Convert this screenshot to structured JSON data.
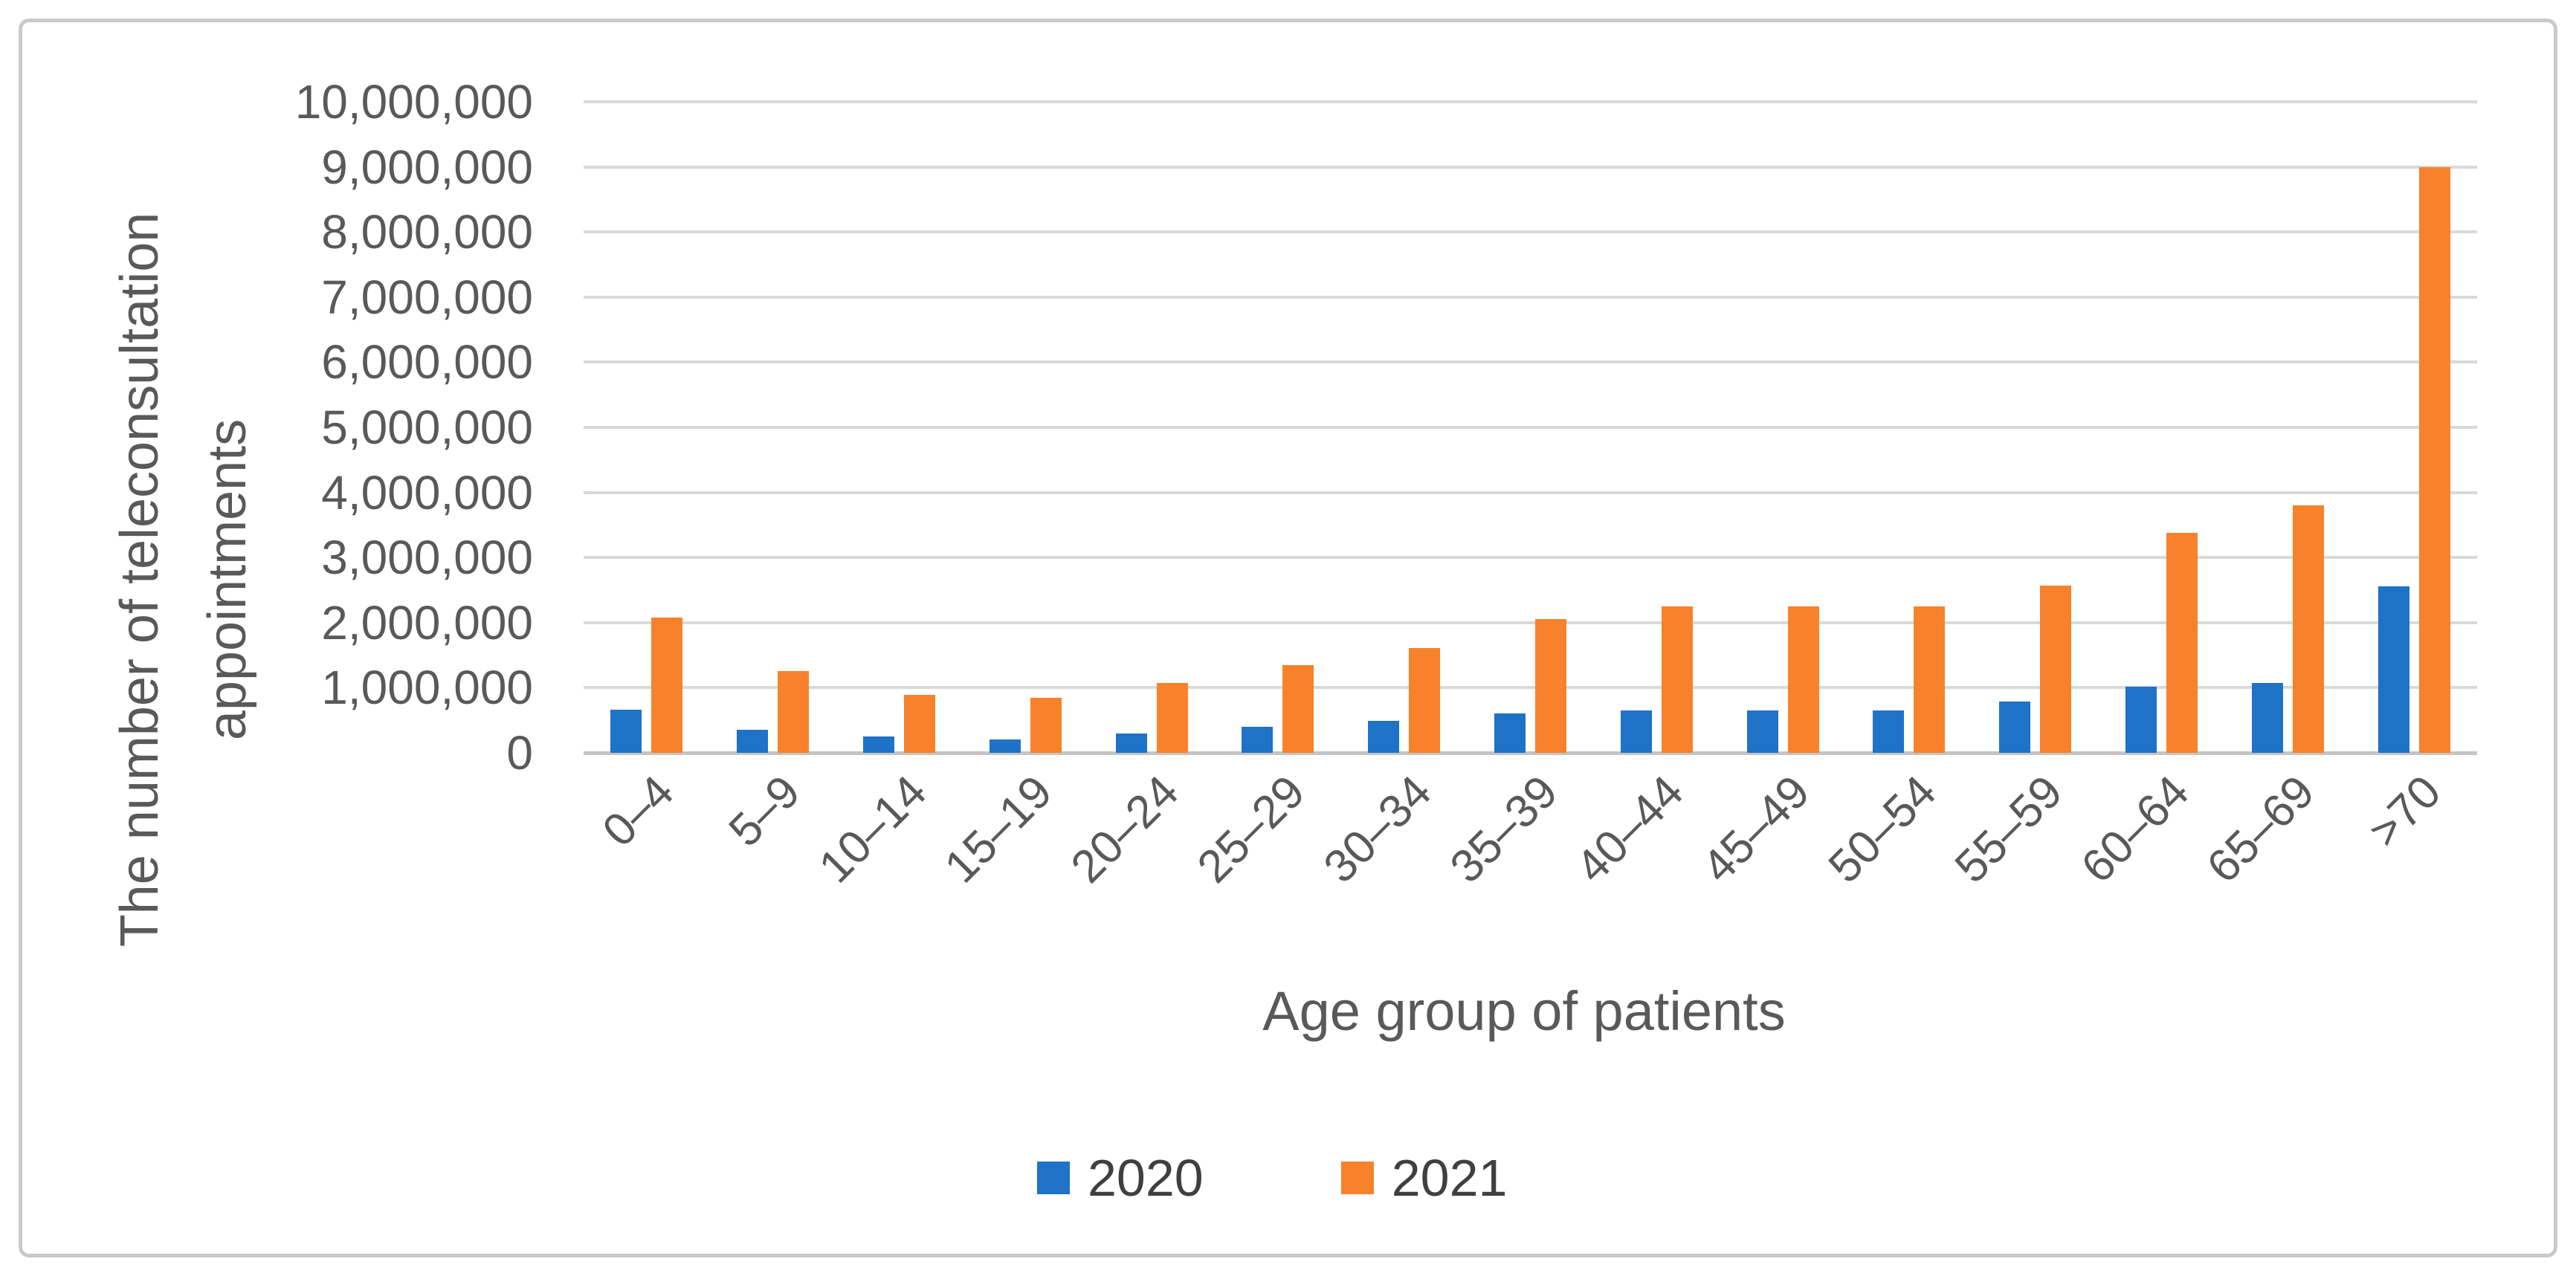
{
  "figure": {
    "background": "#ffffff",
    "border_color": "#c9c9c9",
    "gridline_color": "#d9d9d9",
    "axis_line_color": "#c4c4c4",
    "text_color": "#595959"
  },
  "chart_data": {
    "type": "bar",
    "title": "",
    "xlabel": "Age group of patients",
    "ylabel": "The number of teleconsultation appointments",
    "ylabel_line1": "The number of teleconsultation",
    "ylabel_line2": "appointments",
    "categories": [
      "0–4",
      "5–9",
      "10–14",
      "15–19",
      "20–24",
      "25–29",
      "30–34",
      "35–39",
      "40–44",
      "45–49",
      "50–54",
      "55–59",
      "60–64",
      "65–69",
      ">70"
    ],
    "series": [
      {
        "name": "2020",
        "color": "#1e72c8",
        "values": [
          660000,
          350000,
          250000,
          200000,
          300000,
          400000,
          490000,
          610000,
          650000,
          650000,
          650000,
          790000,
          1020000,
          1070000,
          2560000
        ]
      },
      {
        "name": "2021",
        "color": "#f8812b",
        "values": [
          2080000,
          1260000,
          890000,
          840000,
          1070000,
          1350000,
          1610000,
          2060000,
          2250000,
          2250000,
          2250000,
          2570000,
          3380000,
          3800000,
          9000000
        ]
      }
    ],
    "ylim": [
      0,
      10000000
    ],
    "yticks": [
      "0",
      "1,000,000",
      "2,000,000",
      "3,000,000",
      "4,000,000",
      "5,000,000",
      "6,000,000",
      "7,000,000",
      "8,000,000",
      "9,000,000",
      "10,000,000"
    ],
    "grid": true,
    "legend_position": "bottom"
  }
}
